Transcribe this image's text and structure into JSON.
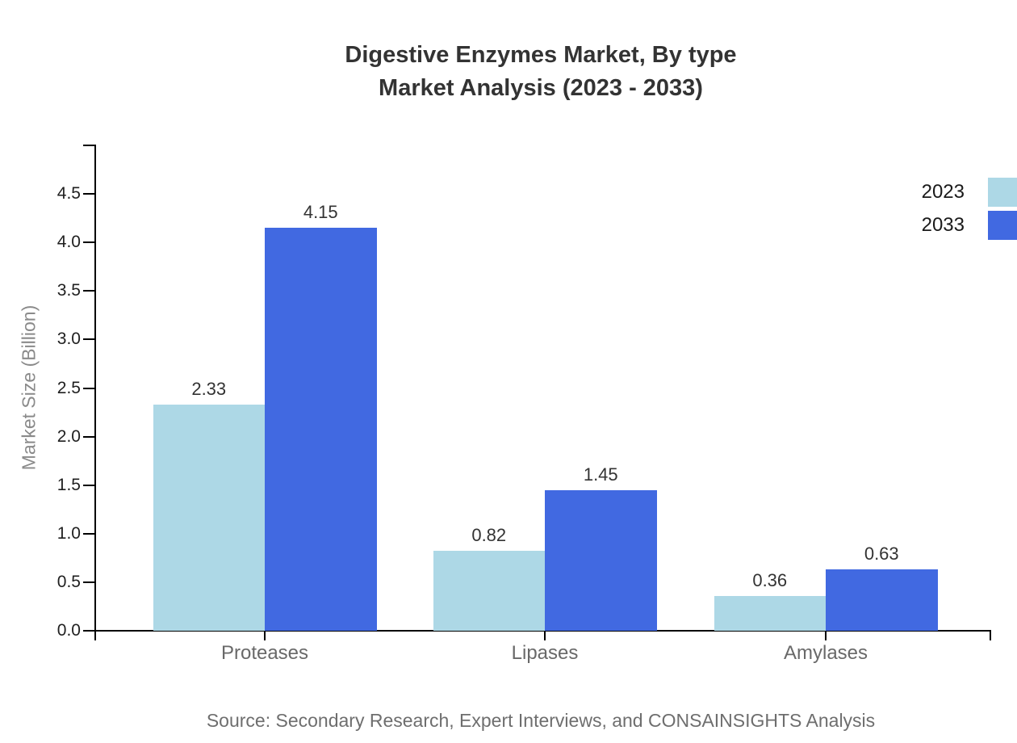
{
  "title": {
    "line1": "Digestive Enzymes Market, By type",
    "line2": "Market Analysis (2023 - 2033)"
  },
  "source": "Source: Secondary Research, Expert Interviews, and CONSAINSIGHTS Analysis",
  "chart_data": {
    "type": "bar",
    "categories": [
      "Proteases",
      "Lipases",
      "Amylases"
    ],
    "series": [
      {
        "name": "2023",
        "color": "#ADD8E6",
        "values": [
          2.33,
          0.82,
          0.36
        ]
      },
      {
        "name": "2033",
        "color": "#4169E1",
        "values": [
          4.15,
          1.45,
          0.63
        ]
      }
    ],
    "title": "Digestive Enzymes Market, By type Market Analysis (2023 - 2033)",
    "xlabel": "",
    "ylabel": "Market Size (Billion)",
    "ylim": [
      0,
      5
    ],
    "yticks": [
      0.0,
      0.5,
      1.0,
      1.5,
      2.0,
      2.5,
      3.0,
      3.5,
      4.0,
      4.5
    ],
    "grid": false,
    "legend_position": "top-right",
    "value_labels": true
  }
}
